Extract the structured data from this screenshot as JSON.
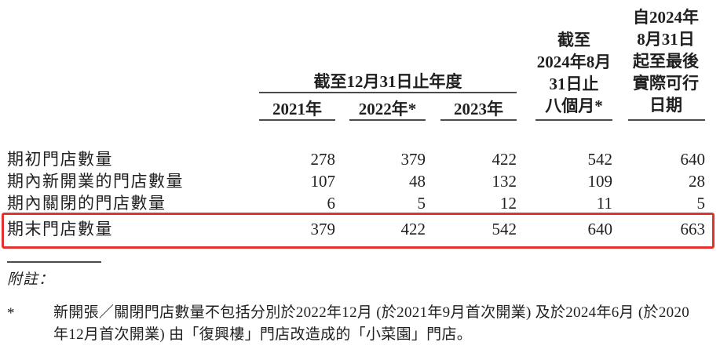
{
  "table": {
    "header": {
      "year_span_label": "截至12月31日止年度",
      "year_columns": [
        "2021年",
        "2022年*",
        "2023年"
      ],
      "eight_months_col_lines": [
        "截至",
        "2024年8月",
        "31日止",
        "八個月*"
      ],
      "latest_date_col_lines": [
        "自2024年",
        "8月31日",
        "起至最後",
        "實際可行",
        "日期"
      ]
    },
    "rows": [
      {
        "label": "期初門店數量",
        "values": [
          "278",
          "379",
          "422",
          "542",
          "640"
        ],
        "highlighted": false
      },
      {
        "label": "期內新開業的門店數量",
        "values": [
          "107",
          "48",
          "132",
          "109",
          "28"
        ],
        "highlighted": false
      },
      {
        "label": "期內關閉的門店數量",
        "values": [
          "6",
          "5",
          "12",
          "11",
          "5"
        ],
        "highlighted": false
      },
      {
        "label": "期末門店數量",
        "values": [
          "379",
          "422",
          "542",
          "640",
          "663"
        ],
        "highlighted": true
      }
    ],
    "highlight_color": "#e2312e"
  },
  "notes": {
    "label": "附註：",
    "footnote_marker": "*",
    "footnote_lines": [
      "新開張／關閉門店數量不包括分別於2022年12月 (於2021年9月首次開業) 及於2024年6月 (於2020",
      "年12月首次開業) 由「復興樓」門店改造成的「小菜園」門店。"
    ]
  }
}
